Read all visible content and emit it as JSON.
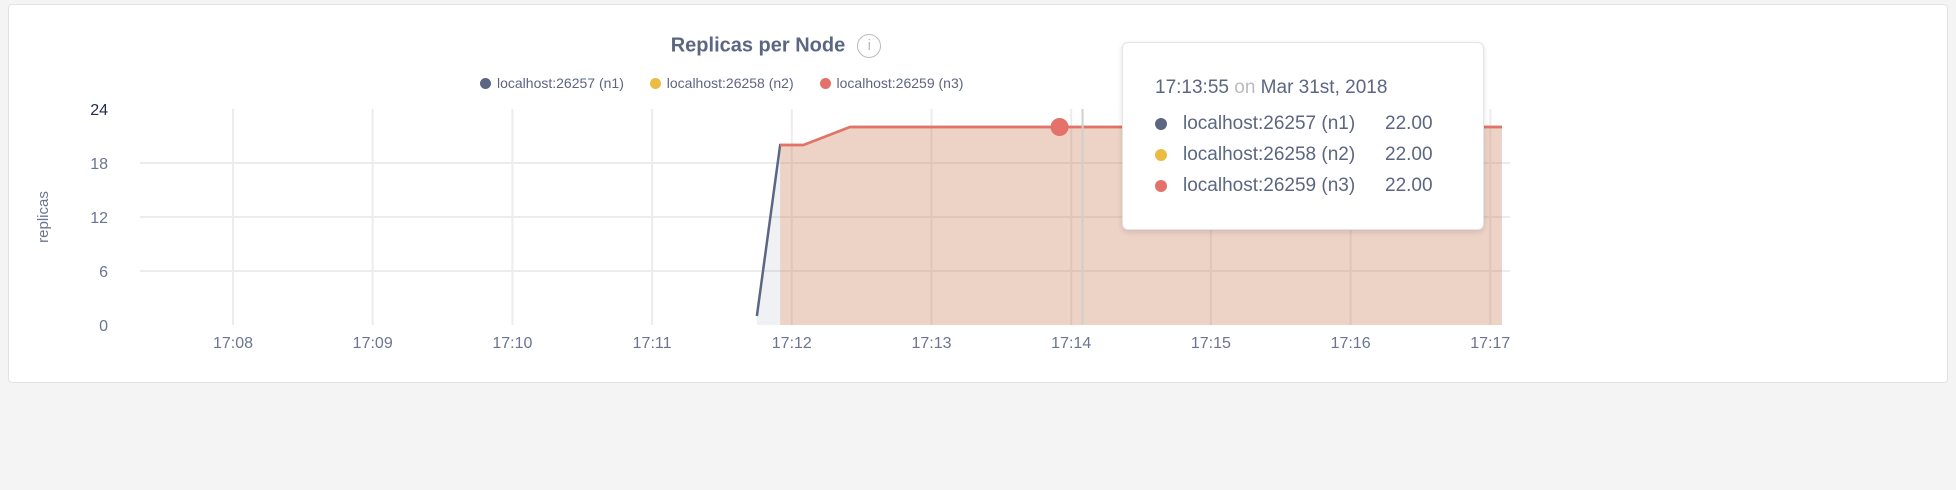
{
  "chart_data": {
    "type": "area",
    "title": "Replicas per Node",
    "ylabel": "replicas",
    "xlabel": "",
    "ylim": [
      0,
      24
    ],
    "yticks": [
      "0",
      "6",
      "12",
      "18",
      "24"
    ],
    "xticks": [
      "17:08",
      "17:09",
      "17:10",
      "17:11",
      "17:12",
      "17:13",
      "17:14",
      "17:15",
      "17:16",
      "17:17"
    ],
    "grid": true,
    "legend_position": "top-center",
    "series": [
      {
        "name": "localhost:26257 (n1)",
        "color": "#5b6682",
        "points": [
          [
            "17:11:45",
            1
          ],
          [
            "17:11:55",
            20
          ],
          [
            "17:12:05",
            20
          ],
          [
            "17:12:25",
            22
          ],
          [
            "17:13:55",
            22
          ],
          [
            "17:17:05",
            22
          ]
        ]
      },
      {
        "name": "localhost:26258 (n2)",
        "color": "#ebbc44",
        "points": [
          [
            "17:11:55",
            20
          ],
          [
            "17:12:05",
            20
          ],
          [
            "17:12:25",
            22
          ],
          [
            "17:13:55",
            22
          ],
          [
            "17:17:05",
            22
          ]
        ]
      },
      {
        "name": "localhost:26259 (n3)",
        "color": "#e4716a",
        "points": [
          [
            "17:11:55",
            20
          ],
          [
            "17:12:05",
            20
          ],
          [
            "17:12:25",
            22
          ],
          [
            "17:13:55",
            22
          ],
          [
            "17:17:05",
            22
          ]
        ]
      }
    ],
    "hover": {
      "time": "17:13:55",
      "connector": "on",
      "date": "Mar 31st, 2018",
      "values": [
        "22.00",
        "22.00",
        "22.00"
      ]
    }
  },
  "info_icon": "info-circle-icon"
}
